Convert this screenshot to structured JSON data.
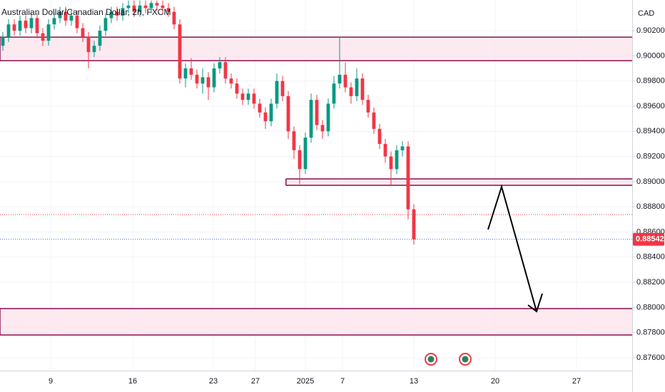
{
  "chart_data": {
    "type": "candlestick",
    "title": "Australian Dollar/Canadian Dollar, 2h, FXCM",
    "currency": "CAD",
    "up_color": "#089981",
    "down_color": "#f23645",
    "grid": true,
    "xlim": [
      0,
      110.75
    ],
    "ylim": [
      0.87498,
      0.90444
    ],
    "xticks": [
      {
        "value": 8.875,
        "label": "9"
      },
      {
        "value": 23.25,
        "label": "16"
      },
      {
        "value": 37.375,
        "label": "23"
      },
      {
        "value": 44.75,
        "label": "27"
      },
      {
        "value": 53.5,
        "label": "2025"
      },
      {
        "value": 60,
        "label": "7"
      },
      {
        "value": 72.5,
        "label": "13"
      },
      {
        "value": 86.75,
        "label": "20"
      },
      {
        "value": 101,
        "label": "27"
      }
    ],
    "yticks": [
      {
        "value": 0.902,
        "label": "0.90200"
      },
      {
        "value": 0.9,
        "label": "0.90000"
      },
      {
        "value": 0.898,
        "label": "0.89800"
      },
      {
        "value": 0.896,
        "label": "0.89600"
      },
      {
        "value": 0.894,
        "label": "0.89400"
      },
      {
        "value": 0.892,
        "label": "0.89200"
      },
      {
        "value": 0.89,
        "label": "0.89000"
      },
      {
        "value": 0.888,
        "label": "0.88800"
      },
      {
        "value": 0.886,
        "label": "0.88600"
      },
      {
        "value": 0.884,
        "label": "0.88400"
      },
      {
        "value": 0.882,
        "label": "0.88200"
      },
      {
        "value": 0.88,
        "label": "0.88000"
      },
      {
        "value": 0.878,
        "label": "0.87800"
      },
      {
        "value": 0.876,
        "label": "0.87600"
      }
    ],
    "x": [
      0.5,
      1.5,
      2.5,
      3.5,
      4.5,
      5.5,
      6.5,
      7.5,
      8.5,
      9.5,
      10.5,
      11.5,
      12.5,
      13.5,
      14.5,
      15.5,
      16.5,
      17.5,
      18.5,
      19.5,
      20.5,
      21.5,
      22.5,
      23.5,
      24.5,
      25.5,
      26.5,
      27.5,
      28.5,
      29.5,
      30.5,
      31.5,
      32.5,
      33.5,
      34.5,
      35.5,
      36.5,
      37.5,
      38.5,
      39.5,
      40.5,
      41.5,
      42.5,
      43.5,
      44.5,
      45.5,
      46.5,
      47.5,
      48.5,
      49.5,
      50.5,
      51.5,
      52.5,
      53.5,
      54.5,
      55.5,
      56.5,
      57.5,
      58.5,
      59.5,
      60.5,
      61.5,
      62.5,
      63.5,
      64.5,
      65.5,
      66.5,
      67.5,
      68.5,
      69.5,
      70.5,
      71.5,
      72.5
    ],
    "open": [
      0.9008,
      0.9015,
      0.9025,
      0.902,
      0.9028,
      0.9022,
      0.903,
      0.9018,
      0.9012,
      0.9025,
      0.903,
      0.9035,
      0.9028,
      0.9032,
      0.9022,
      0.9015,
      0.9003,
      0.9008,
      0.902,
      0.903,
      0.9035,
      0.9032,
      0.9038,
      0.904,
      0.9035,
      0.904,
      0.9038,
      0.9042,
      0.904,
      0.9038,
      0.9035,
      0.9025,
      0.8982,
      0.899,
      0.8985,
      0.8978,
      0.8983,
      0.8975,
      0.899,
      0.8995,
      0.8982,
      0.8978,
      0.897,
      0.8965,
      0.897,
      0.8962,
      0.8955,
      0.8948,
      0.8962,
      0.898,
      0.8968,
      0.894,
      0.8925,
      0.891,
      0.8935,
      0.8965,
      0.8945,
      0.894,
      0.8962,
      0.8978,
      0.8985,
      0.8975,
      0.8968,
      0.8982,
      0.8965,
      0.8955,
      0.8942,
      0.893,
      0.892,
      0.891,
      0.8925,
      0.8928,
      0.8878
    ],
    "high": [
      0.9019,
      0.9029,
      0.9029,
      0.9032,
      0.9032,
      0.9034,
      0.9034,
      0.9022,
      0.9029,
      0.9034,
      0.9039,
      0.9039,
      0.9036,
      0.9036,
      0.9026,
      0.9019,
      0.9012,
      0.9024,
      0.9034,
      0.9039,
      0.9039,
      0.9042,
      0.9044,
      0.9044,
      0.9044,
      0.9044,
      0.9044,
      0.9044,
      0.9044,
      0.9042,
      0.9039,
      0.9029,
      0.8994,
      0.8998,
      0.8989,
      0.899,
      0.8987,
      0.8994,
      0.8999,
      0.8999,
      0.8986,
      0.8982,
      0.8974,
      0.8974,
      0.8974,
      0.8966,
      0.8959,
      0.8966,
      0.8986,
      0.8984,
      0.8972,
      0.8944,
      0.8929,
      0.8939,
      0.897,
      0.8969,
      0.8949,
      0.8966,
      0.8984,
      0.9015,
      0.8995,
      0.8979,
      0.899,
      0.8986,
      0.8969,
      0.8959,
      0.8946,
      0.8934,
      0.8924,
      0.8929,
      0.8932,
      0.8932,
      0.8882
    ],
    "low": [
      0.9004,
      0.9011,
      0.9016,
      0.9016,
      0.9018,
      0.9018,
      0.9014,
      0.9008,
      0.9008,
      0.9021,
      0.9026,
      0.9024,
      0.9024,
      0.9018,
      0.9011,
      0.899,
      0.8999,
      0.9004,
      0.9016,
      0.9026,
      0.9028,
      0.9028,
      0.9034,
      0.9031,
      0.9031,
      0.9034,
      0.9034,
      0.9036,
      0.9034,
      0.9031,
      0.9021,
      0.8978,
      0.8975,
      0.8981,
      0.8974,
      0.897,
      0.8965,
      0.8971,
      0.8986,
      0.8978,
      0.8974,
      0.8966,
      0.8961,
      0.8961,
      0.8958,
      0.8951,
      0.8942,
      0.8944,
      0.8958,
      0.8964,
      0.8934,
      0.8918,
      0.8898,
      0.8906,
      0.8931,
      0.8941,
      0.8934,
      0.8936,
      0.8958,
      0.8974,
      0.8971,
      0.8962,
      0.8964,
      0.8961,
      0.8951,
      0.8938,
      0.8926,
      0.8915,
      0.8897,
      0.8906,
      0.892,
      0.887,
      0.885
    ],
    "close": [
      0.9015,
      0.9025,
      0.902,
      0.9028,
      0.9022,
      0.903,
      0.9018,
      0.9012,
      0.9025,
      0.903,
      0.9035,
      0.9028,
      0.9032,
      0.9022,
      0.9015,
      0.9003,
      0.9008,
      0.902,
      0.903,
      0.9035,
      0.9032,
      0.9038,
      0.904,
      0.9035,
      0.904,
      0.9038,
      0.9042,
      0.904,
      0.9038,
      0.9035,
      0.9025,
      0.8982,
      0.899,
      0.8985,
      0.8978,
      0.8983,
      0.8975,
      0.899,
      0.8995,
      0.8982,
      0.8978,
      0.897,
      0.8965,
      0.897,
      0.8962,
      0.8955,
      0.8948,
      0.8962,
      0.898,
      0.8968,
      0.894,
      0.8925,
      0.891,
      0.8935,
      0.8965,
      0.8945,
      0.894,
      0.8962,
      0.8978,
      0.8985,
      0.8975,
      0.8968,
      0.8982,
      0.8965,
      0.8955,
      0.8942,
      0.893,
      0.892,
      0.891,
      0.8925,
      0.8928,
      0.8878,
      0.88542
    ],
    "zones": [
      {
        "top": 0.90149,
        "bottom": 0.89962,
        "x_start": 0
      },
      {
        "top": 0.89022,
        "bottom": 0.88971,
        "x_start": 50.1
      },
      {
        "top": 0.87991,
        "bottom": 0.87781,
        "x_start": 0
      }
    ],
    "zone_fill": "#fce4ec",
    "zone_stroke": "#880e4f",
    "reference_line": {
      "value": 0.88739,
      "color": "#f23645"
    },
    "last_price": 0.88542,
    "last_price_color": "#2962ff"
  }
}
